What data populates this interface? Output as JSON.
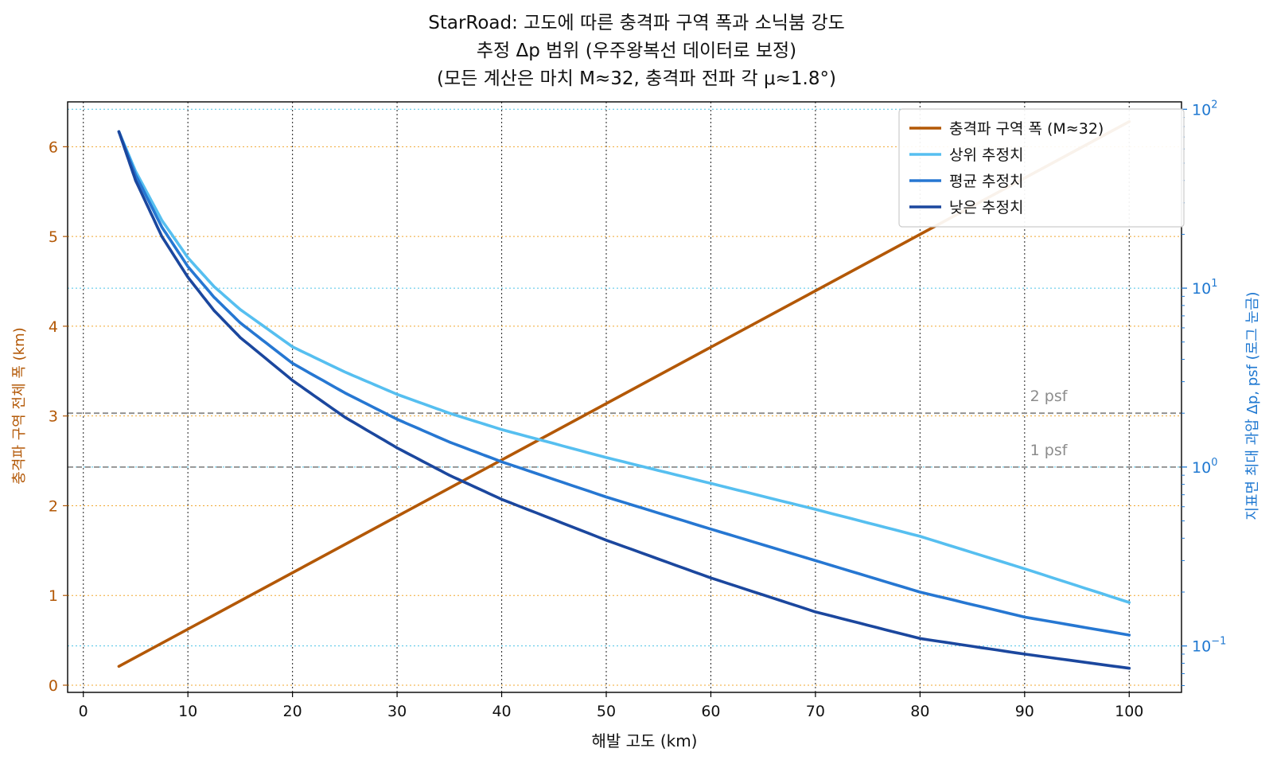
{
  "chart_data": {
    "type": "line",
    "title": [
      "StarRoad: 고도에 따른 충격파 구역 폭과 소닉붐 강도",
      "추정 Δp 범위 (우주왕복선 데이터로 보정)",
      "(모든 계산은 마치 M≈32, 충격파 전파 각 μ≈1.8°)"
    ],
    "xlabel": "해발 고도 (km)",
    "ylabel_left": "충격파 구역 전체 폭 (km)",
    "ylabel_right": "지표면 최대 과압 Δp, psf (로그 눈금)",
    "xlim": [
      -1.5,
      105
    ],
    "ylim_left": [
      -0.08,
      6.5
    ],
    "ylim_right": [
      0.055,
      110
    ],
    "right_scale": "log",
    "x_ticks": [
      0,
      10,
      20,
      30,
      40,
      50,
      60,
      70,
      80,
      90,
      100
    ],
    "y_left_ticks": [
      0,
      1,
      2,
      3,
      4,
      5,
      6
    ],
    "y_right_ticks": [
      {
        "value": 0.1,
        "base": "10",
        "exp": "−1"
      },
      {
        "value": 1,
        "base": "10",
        "exp": "0"
      },
      {
        "value": 10,
        "base": "10",
        "exp": "1"
      },
      {
        "value": 100,
        "base": "10",
        "exp": "2"
      }
    ],
    "grid": true,
    "legend_position": "top-right",
    "colors": {
      "left_axis": "#b35806",
      "right_axis": "#1f78d1",
      "width_line": "#b35806",
      "upper": "#56bff0",
      "mean": "#2677d2",
      "low": "#1b479e",
      "reference": "#8c8c8c"
    },
    "series": [
      {
        "name": "충격파 구역 폭 (M≈32)",
        "axis": "left",
        "x": [
          3.4,
          100
        ],
        "y": [
          0.21,
          6.28
        ]
      },
      {
        "name": "상위 추정치",
        "axis": "right",
        "x": [
          3.4,
          5,
          7.5,
          10,
          12.5,
          15,
          20,
          25,
          30,
          35,
          40,
          50,
          60,
          70,
          80,
          90,
          100
        ],
        "y": [
          75,
          45,
          24,
          14.8,
          10.2,
          7.6,
          4.7,
          3.4,
          2.55,
          2.0,
          1.62,
          1.13,
          0.81,
          0.58,
          0.41,
          0.27,
          0.175
        ]
      },
      {
        "name": "평균 추정치",
        "axis": "right",
        "x": [
          3.4,
          5,
          7.5,
          10,
          12.5,
          15,
          20,
          25,
          30,
          35,
          40,
          50,
          60,
          70,
          80,
          90,
          100
        ],
        "y": [
          75,
          43,
          22,
          13.2,
          8.9,
          6.4,
          3.8,
          2.6,
          1.85,
          1.38,
          1.07,
          0.68,
          0.45,
          0.3,
          0.2,
          0.145,
          0.115
        ]
      },
      {
        "name": "낮은 추정치",
        "axis": "right",
        "x": [
          3.4,
          5,
          7.5,
          10,
          12.5,
          15,
          20,
          25,
          30,
          35,
          40,
          50,
          60,
          70,
          80,
          90,
          100
        ],
        "y": [
          75,
          40,
          19.5,
          11.5,
          7.5,
          5.3,
          3.05,
          1.9,
          1.28,
          0.9,
          0.66,
          0.39,
          0.24,
          0.155,
          0.11,
          0.09,
          0.075
        ]
      }
    ],
    "reference_lines": [
      {
        "label": "2 psf",
        "value": 2
      },
      {
        "label": "1 psf",
        "value": 1
      }
    ]
  }
}
